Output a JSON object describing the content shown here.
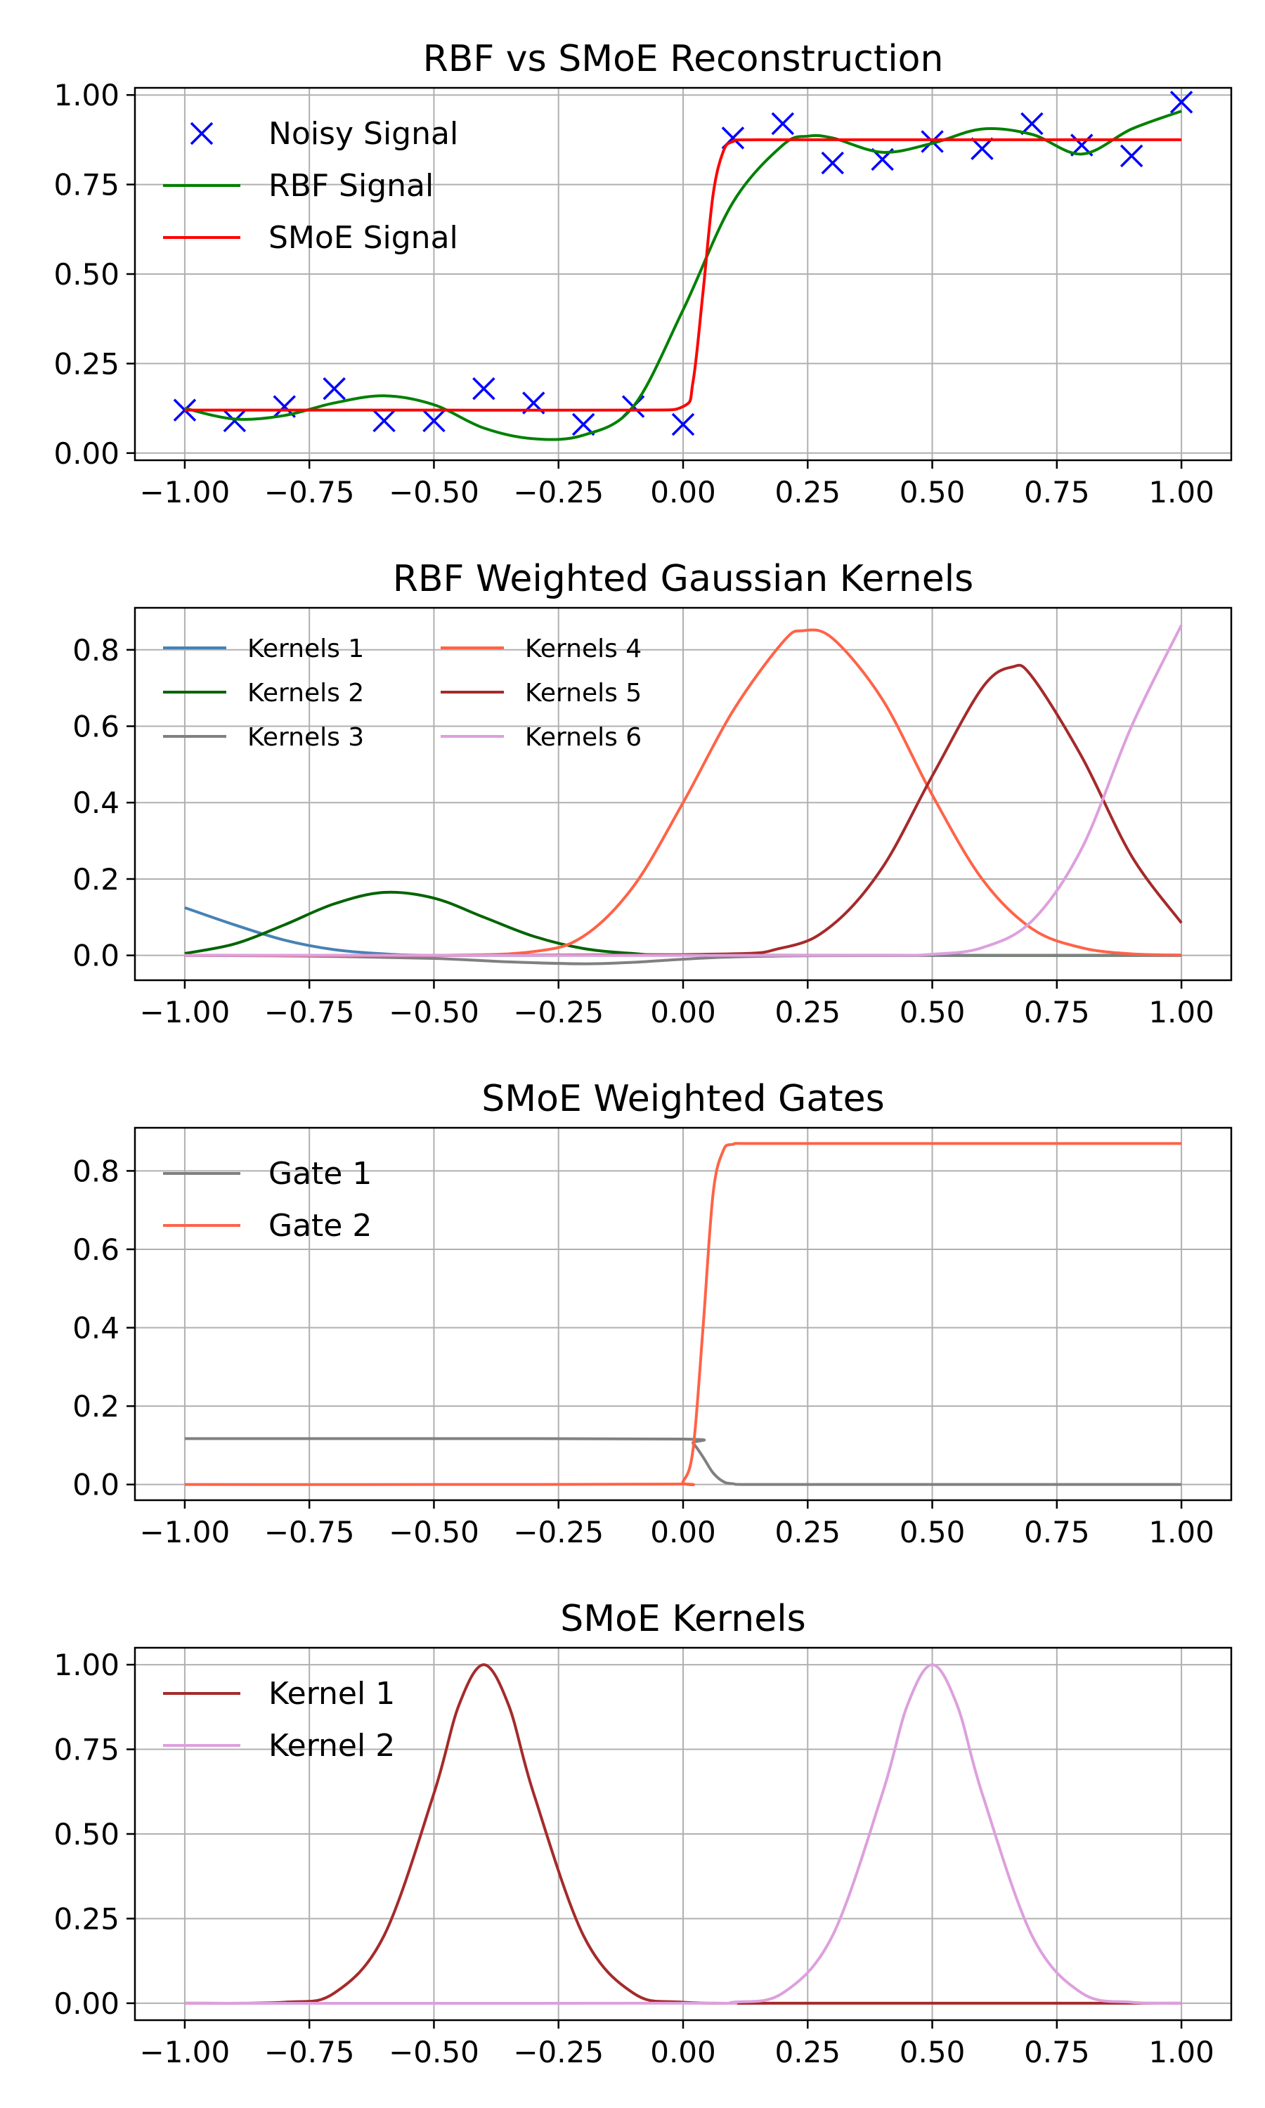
{
  "chart_data": [
    {
      "type": "line",
      "title": "RBF vs SMoE Reconstruction",
      "xlim": [
        -1.1,
        1.1
      ],
      "ylim": [
        -0.02,
        1.02
      ],
      "xticks": [
        -1.0,
        -0.75,
        -0.5,
        -0.25,
        0.0,
        0.25,
        0.5,
        0.75,
        1.0
      ],
      "xtick_labels": [
        "−1.00",
        "−0.75",
        "−0.50",
        "−0.25",
        "0.00",
        "0.25",
        "0.50",
        "0.75",
        "1.00"
      ],
      "yticks": [
        0.0,
        0.25,
        0.5,
        0.75,
        1.0
      ],
      "ytick_labels": [
        "0.00",
        "0.25",
        "0.50",
        "0.75",
        "1.00"
      ],
      "grid": true,
      "legend": "upper-left",
      "legend_entries": [
        "Noisy Signal",
        "RBF Signal",
        "SMoE Signal"
      ],
      "series": [
        {
          "name": "Noisy Signal",
          "kind": "marker-x",
          "color": "#0000ff",
          "x": [
            -1.0,
            -0.9,
            -0.8,
            -0.7,
            -0.6,
            -0.5,
            -0.4,
            -0.3,
            -0.2,
            -0.1,
            0.0,
            0.1,
            0.2,
            0.3,
            0.4,
            0.5,
            0.6,
            0.7,
            0.8,
            0.9,
            1.0
          ],
          "y": [
            0.12,
            0.09,
            0.13,
            0.18,
            0.09,
            0.09,
            0.18,
            0.14,
            0.08,
            0.13,
            0.08,
            0.88,
            0.92,
            0.81,
            0.82,
            0.87,
            0.85,
            0.92,
            0.86,
            0.83,
            0.98
          ]
        },
        {
          "name": "RBF Signal",
          "kind": "line",
          "color": "#008000",
          "x": [
            -1.0,
            -0.9,
            -0.8,
            -0.7,
            -0.6,
            -0.5,
            -0.4,
            -0.3,
            -0.2,
            -0.1,
            0.0,
            0.1,
            0.2,
            0.25,
            0.3,
            0.4,
            0.5,
            0.6,
            0.7,
            0.8,
            0.9,
            1.0
          ],
          "y": [
            0.125,
            0.095,
            0.105,
            0.14,
            0.16,
            0.135,
            0.07,
            0.04,
            0.05,
            0.13,
            0.4,
            0.7,
            0.86,
            0.885,
            0.88,
            0.84,
            0.865,
            0.905,
            0.89,
            0.835,
            0.905,
            0.955
          ]
        },
        {
          "name": "SMoE Signal",
          "kind": "line",
          "color": "#ff0000",
          "x": [
            -1.0,
            -0.5,
            -0.1,
            0.0,
            0.02,
            0.04,
            0.06,
            0.08,
            0.1,
            0.15,
            0.5,
            1.0
          ],
          "y": [
            0.12,
            0.12,
            0.12,
            0.13,
            0.2,
            0.45,
            0.72,
            0.84,
            0.87,
            0.875,
            0.875,
            0.875
          ]
        }
      ]
    },
    {
      "type": "line",
      "title": "RBF Weighted Gaussian Kernels",
      "xlim": [
        -1.1,
        1.1
      ],
      "ylim": [
        -0.065,
        0.91
      ],
      "xticks": [
        -1.0,
        -0.75,
        -0.5,
        -0.25,
        0.0,
        0.25,
        0.5,
        0.75,
        1.0
      ],
      "xtick_labels": [
        "−1.00",
        "−0.75",
        "−0.50",
        "−0.25",
        "0.00",
        "0.25",
        "0.50",
        "0.75",
        "1.00"
      ],
      "yticks": [
        0.0,
        0.2,
        0.4,
        0.6,
        0.8
      ],
      "ytick_labels": [
        "0.0",
        "0.2",
        "0.4",
        "0.6",
        "0.8"
      ],
      "grid": true,
      "legend": "upper-left",
      "legend_entries": [
        "Kernels 1",
        "Kernels 2",
        "Kernels 3",
        "Kernels 4",
        "Kernels 5",
        "Kernels 6"
      ],
      "series": [
        {
          "name": "Kernels 1",
          "kind": "line",
          "color": "#4682b4",
          "x": [
            -1.0,
            -0.9,
            -0.8,
            -0.7,
            -0.6,
            -0.5,
            -0.25,
            0.0,
            0.5,
            1.0
          ],
          "y": [
            0.125,
            0.08,
            0.04,
            0.015,
            0.004,
            0.0,
            0.0,
            0.0,
            0.0,
            0.0
          ]
        },
        {
          "name": "Kernels 2",
          "kind": "line",
          "color": "#006400",
          "x": [
            -1.0,
            -0.9,
            -0.8,
            -0.7,
            -0.6,
            -0.5,
            -0.4,
            -0.3,
            -0.2,
            -0.1,
            0.0,
            0.5,
            1.0
          ],
          "y": [
            0.005,
            0.03,
            0.08,
            0.135,
            0.165,
            0.15,
            0.1,
            0.05,
            0.018,
            0.005,
            0.001,
            0.0,
            0.0
          ]
        },
        {
          "name": "Kernels 3",
          "kind": "line",
          "color": "#808080",
          "x": [
            -1.0,
            -0.75,
            -0.5,
            -0.35,
            -0.2,
            -0.1,
            0.0,
            0.1,
            0.25,
            0.5,
            1.0
          ],
          "y": [
            0.0,
            -0.002,
            -0.008,
            -0.017,
            -0.022,
            -0.018,
            -0.01,
            -0.004,
            -0.001,
            0.0,
            0.0
          ]
        },
        {
          "name": "Kernels 4",
          "kind": "line",
          "color": "#ff6347",
          "x": [
            -1.0,
            -0.5,
            -0.3,
            -0.2,
            -0.1,
            0.0,
            0.1,
            0.2,
            0.24,
            0.3,
            0.4,
            0.5,
            0.6,
            0.7,
            0.8,
            0.9,
            1.0
          ],
          "y": [
            0.0,
            0.0,
            0.01,
            0.05,
            0.18,
            0.4,
            0.64,
            0.82,
            0.85,
            0.83,
            0.67,
            0.42,
            0.2,
            0.07,
            0.02,
            0.004,
            0.001
          ]
        },
        {
          "name": "Kernels 5",
          "kind": "line",
          "color": "#a52a2a",
          "x": [
            -1.0,
            0.0,
            0.2,
            0.3,
            0.4,
            0.5,
            0.6,
            0.66,
            0.7,
            0.8,
            0.9,
            1.0
          ],
          "y": [
            0.0,
            0.002,
            0.02,
            0.08,
            0.23,
            0.47,
            0.7,
            0.755,
            0.73,
            0.52,
            0.26,
            0.085
          ]
        },
        {
          "name": "Kernels 6",
          "kind": "line",
          "color": "#dda0dd",
          "x": [
            -1.0,
            0.0,
            0.4,
            0.5,
            0.6,
            0.7,
            0.8,
            0.9,
            1.0
          ],
          "y": [
            0.0,
            0.0,
            0.0,
            0.003,
            0.02,
            0.09,
            0.28,
            0.6,
            0.865
          ]
        }
      ]
    },
    {
      "type": "line",
      "title": "SMoE Weighted Gates",
      "xlim": [
        -1.1,
        1.1
      ],
      "ylim": [
        -0.04,
        0.91
      ],
      "xticks": [
        -1.0,
        -0.75,
        -0.5,
        -0.25,
        0.0,
        0.25,
        0.5,
        0.75,
        1.0
      ],
      "xtick_labels": [
        "−1.00",
        "−0.75",
        "−0.50",
        "−0.25",
        "0.00",
        "0.25",
        "0.50",
        "0.75",
        "1.00"
      ],
      "yticks": [
        0.0,
        0.2,
        0.4,
        0.6,
        0.8
      ],
      "ytick_labels": [
        "0.0",
        "0.2",
        "0.4",
        "0.6",
        "0.8"
      ],
      "grid": true,
      "legend": "upper-left",
      "legend_entries": [
        "Gate 1",
        "Gate 2"
      ],
      "series": [
        {
          "name": "Gate 1",
          "kind": "line",
          "color": "#808080",
          "x": [
            -1.0,
            -0.5,
            0.0,
            0.02,
            0.04,
            0.06,
            0.08,
            0.1,
            0.15,
            0.5,
            1.0
          ],
          "y": [
            0.117,
            0.117,
            0.116,
            0.105,
            0.07,
            0.03,
            0.008,
            0.002,
            0.0,
            0.0,
            0.0
          ]
        },
        {
          "name": "Gate 2",
          "kind": "line",
          "color": "#ff6347",
          "x": [
            -1.0,
            -0.5,
            -0.02,
            0.0,
            0.02,
            0.04,
            0.06,
            0.08,
            0.1,
            0.15,
            0.5,
            1.0
          ],
          "y": [
            0.0,
            0.0,
            0.001,
            0.008,
            0.09,
            0.4,
            0.74,
            0.85,
            0.868,
            0.87,
            0.87,
            0.87
          ]
        }
      ]
    },
    {
      "type": "line",
      "title": "SMoE Kernels",
      "xlim": [
        -1.1,
        1.1
      ],
      "ylim": [
        -0.05,
        1.05
      ],
      "xticks": [
        -1.0,
        -0.75,
        -0.5,
        -0.25,
        0.0,
        0.25,
        0.5,
        0.75,
        1.0
      ],
      "xtick_labels": [
        "−1.00",
        "−0.75",
        "−0.50",
        "−0.25",
        "0.00",
        "0.25",
        "0.50",
        "0.75",
        "1.00"
      ],
      "yticks": [
        0.0,
        0.25,
        0.5,
        0.75,
        1.0
      ],
      "ytick_labels": [
        "0.00",
        "0.25",
        "0.50",
        "0.75",
        "1.00"
      ],
      "grid": true,
      "legend": "upper-left",
      "legend_entries": [
        "Kernel 1",
        "Kernel 2"
      ],
      "series": [
        {
          "name": "Kernel 1",
          "kind": "line",
          "color": "#a52a2a",
          "x": [
            -1.0,
            -0.8,
            -0.7,
            -0.6,
            -0.5,
            -0.45,
            -0.4,
            -0.35,
            -0.3,
            -0.2,
            -0.1,
            0.0,
            0.2,
            0.5,
            1.0
          ],
          "y": [
            0.0,
            0.003,
            0.03,
            0.2,
            0.62,
            0.88,
            1.0,
            0.88,
            0.62,
            0.2,
            0.03,
            0.003,
            0.0,
            0.0,
            0.0
          ]
        },
        {
          "name": "Kernel 2",
          "kind": "line",
          "color": "#dda0dd",
          "x": [
            -1.0,
            0.0,
            0.1,
            0.2,
            0.3,
            0.4,
            0.45,
            0.5,
            0.55,
            0.6,
            0.7,
            0.8,
            0.9,
            1.0
          ],
          "y": [
            0.0,
            0.0,
            0.003,
            0.03,
            0.2,
            0.62,
            0.88,
            1.0,
            0.88,
            0.62,
            0.2,
            0.03,
            0.003,
            0.0
          ]
        }
      ]
    }
  ]
}
